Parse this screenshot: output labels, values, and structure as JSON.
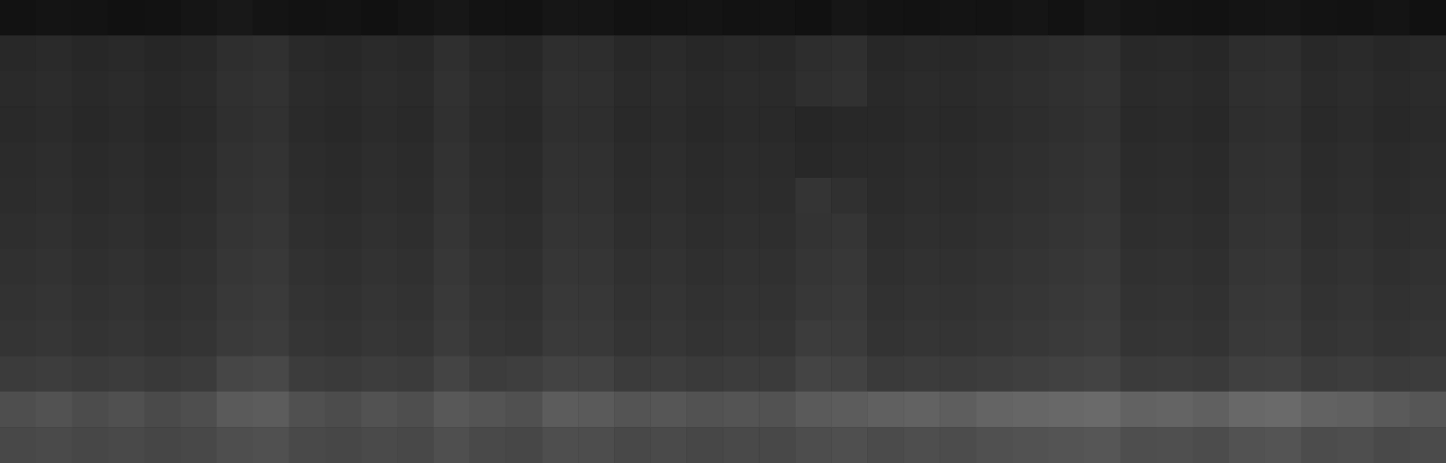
{
  "chart_data": {
    "type": "heatmap",
    "tick_labels": false,
    "zlim": [
      0,
      255
    ],
    "cells": [
      [
        18,
        20,
        19,
        17,
        18,
        21,
        24,
        20,
        18,
        19,
        17,
        20,
        23,
        19,
        18,
        22,
        21,
        18,
        19,
        20,
        18,
        19,
        17,
        22,
        19,
        18,
        20,
        19,
        21,
        18,
        23,
        20,
        19,
        18,
        20,
        21,
        19,
        18,
        20,
        17
      ],
      [
        40,
        42,
        39,
        41,
        38,
        40,
        46,
        48,
        41,
        39,
        42,
        40,
        47,
        41,
        39,
        46,
        45,
        40,
        42,
        39,
        41,
        40,
        45,
        47,
        39,
        41,
        40,
        42,
        44,
        46,
        48,
        40,
        41,
        39,
        45,
        46,
        40,
        42,
        39,
        41
      ],
      [
        42,
        44,
        41,
        43,
        40,
        42,
        48,
        50,
        43,
        41,
        44,
        42,
        49,
        43,
        41,
        48,
        47,
        42,
        44,
        41,
        43,
        42,
        47,
        49,
        41,
        43,
        42,
        44,
        46,
        48,
        50,
        42,
        43,
        41,
        47,
        48,
        42,
        44,
        41,
        43
      ],
      [
        41,
        43,
        40,
        42,
        39,
        41,
        47,
        49,
        42,
        40,
        43,
        41,
        48,
        42,
        40,
        47,
        46,
        41,
        43,
        40,
        42,
        41,
        38,
        40,
        40,
        42,
        41,
        43,
        45,
        47,
        49,
        41,
        42,
        40,
        46,
        47,
        41,
        43,
        40,
        42
      ],
      [
        43,
        45,
        42,
        44,
        41,
        43,
        49,
        51,
        44,
        42,
        45,
        43,
        50,
        44,
        42,
        49,
        48,
        43,
        45,
        42,
        44,
        43,
        40,
        42,
        42,
        44,
        43,
        45,
        47,
        49,
        51,
        43,
        44,
        42,
        48,
        49,
        43,
        45,
        42,
        44
      ],
      [
        44,
        46,
        43,
        45,
        42,
        44,
        50,
        52,
        45,
        43,
        46,
        44,
        51,
        45,
        43,
        50,
        49,
        44,
        46,
        43,
        45,
        44,
        52,
        48,
        43,
        45,
        44,
        46,
        48,
        50,
        52,
        44,
        45,
        43,
        49,
        50,
        44,
        46,
        43,
        45
      ],
      [
        46,
        48,
        45,
        47,
        44,
        46,
        52,
        54,
        47,
        45,
        48,
        46,
        53,
        47,
        45,
        52,
        51,
        46,
        48,
        45,
        47,
        46,
        51,
        53,
        45,
        47,
        46,
        48,
        50,
        52,
        54,
        46,
        47,
        45,
        51,
        52,
        46,
        48,
        45,
        47
      ],
      [
        48,
        50,
        47,
        49,
        46,
        48,
        54,
        56,
        49,
        47,
        50,
        48,
        55,
        49,
        47,
        54,
        53,
        48,
        50,
        47,
        49,
        48,
        53,
        55,
        47,
        49,
        48,
        50,
        52,
        54,
        56,
        48,
        49,
        47,
        53,
        54,
        48,
        50,
        47,
        49
      ],
      [
        50,
        52,
        49,
        51,
        48,
        50,
        56,
        58,
        51,
        49,
        52,
        50,
        57,
        51,
        49,
        56,
        55,
        50,
        52,
        49,
        51,
        50,
        55,
        57,
        49,
        51,
        50,
        52,
        54,
        56,
        58,
        50,
        51,
        49,
        55,
        56,
        50,
        52,
        49,
        51
      ],
      [
        52,
        54,
        51,
        53,
        50,
        52,
        58,
        60,
        53,
        51,
        54,
        52,
        59,
        53,
        51,
        58,
        57,
        52,
        54,
        51,
        53,
        52,
        60,
        59,
        51,
        53,
        52,
        54,
        56,
        58,
        60,
        52,
        53,
        51,
        57,
        58,
        52,
        54,
        51,
        53
      ],
      [
        59,
        61,
        58,
        60,
        57,
        59,
        70,
        72,
        60,
        58,
        61,
        59,
        68,
        60,
        62,
        67,
        66,
        59,
        61,
        58,
        60,
        59,
        68,
        66,
        58,
        60,
        59,
        61,
        63,
        65,
        67,
        59,
        60,
        58,
        64,
        65,
        59,
        61,
        58,
        60
      ],
      [
        78,
        82,
        76,
        80,
        74,
        78,
        90,
        92,
        80,
        76,
        82,
        78,
        88,
        84,
        80,
        92,
        90,
        84,
        86,
        82,
        84,
        82,
        90,
        92,
        96,
        98,
        94,
        100,
        102,
        104,
        106,
        98,
        100,
        96,
        104,
        106,
        98,
        96,
        90,
        86
      ],
      [
        72,
        74,
        71,
        73,
        70,
        72,
        78,
        80,
        73,
        71,
        74,
        72,
        79,
        73,
        71,
        78,
        77,
        72,
        74,
        71,
        73,
        72,
        77,
        79,
        75,
        78,
        76,
        80,
        82,
        84,
        86,
        78,
        79,
        76,
        82,
        84,
        76,
        78,
        73,
        75
      ]
    ]
  }
}
